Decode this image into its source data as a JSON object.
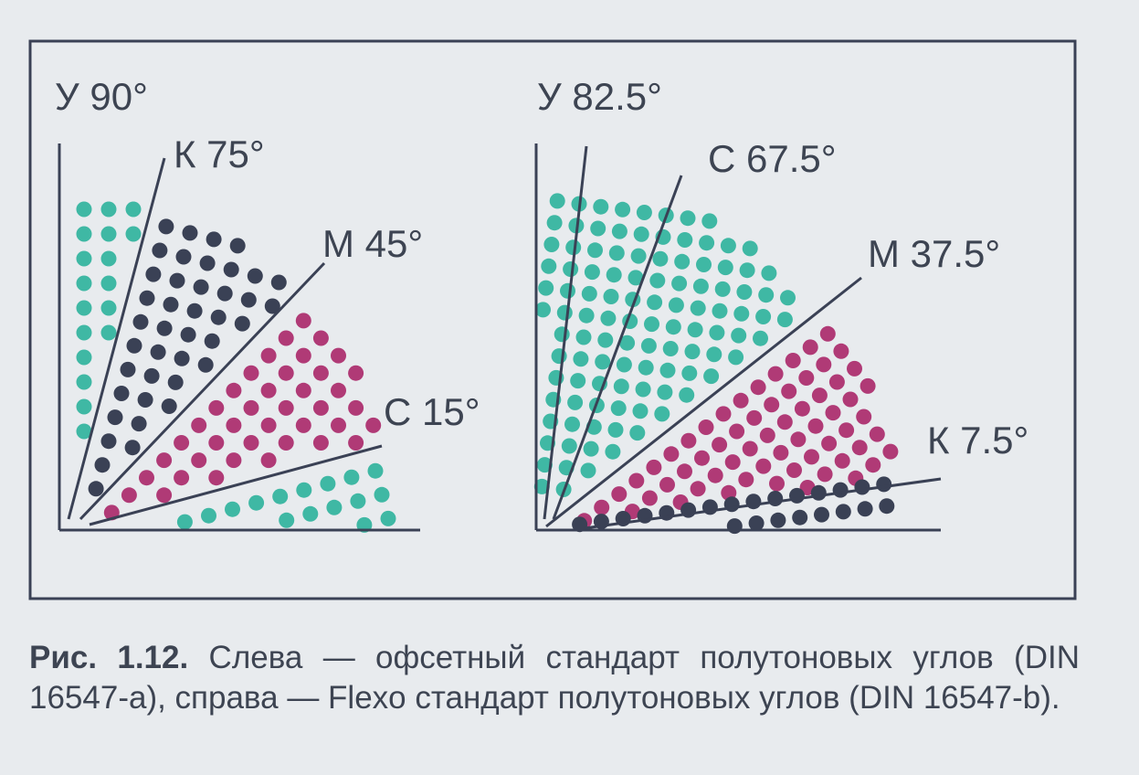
{
  "colors": {
    "yellow_cyan": "#3fb8a4",
    "key_dark": "#3a4155",
    "magenta": "#b03a76",
    "cyan": "#3fb8a4",
    "line": "#3a4155",
    "background": "#e8ebee"
  },
  "left_panel": {
    "standard": "DIN 16547-a",
    "labels": [
      {
        "text": "У 90°",
        "angle": 90,
        "color_key": "yellow_cyan"
      },
      {
        "text": "К 75°",
        "angle": 75,
        "color_key": "key_dark"
      },
      {
        "text": "М 45°",
        "angle": 45,
        "color_key": "magenta"
      },
      {
        "text": "С 15°",
        "angle": 15,
        "color_key": "cyan"
      }
    ]
  },
  "right_panel": {
    "standard": "DIN 16547-b",
    "labels": [
      {
        "text": "У 82.5°",
        "angle": 82.5,
        "color_key": "yellow_cyan"
      },
      {
        "text": "С 67.5°",
        "angle": 67.5,
        "color_key": "cyan"
      },
      {
        "text": "М 37.5°",
        "angle": 37.5,
        "color_key": "magenta"
      },
      {
        "text": "К 7.5°",
        "angle": 7.5,
        "color_key": "key_dark"
      }
    ]
  },
  "caption": {
    "label": "Рис. 1.12.",
    "text": " Слева — офсетный стандарт полутоновых углов (DIN 16547-a), справа — Flexo стандарт полутоновых углов (DIN 16547-b)."
  }
}
